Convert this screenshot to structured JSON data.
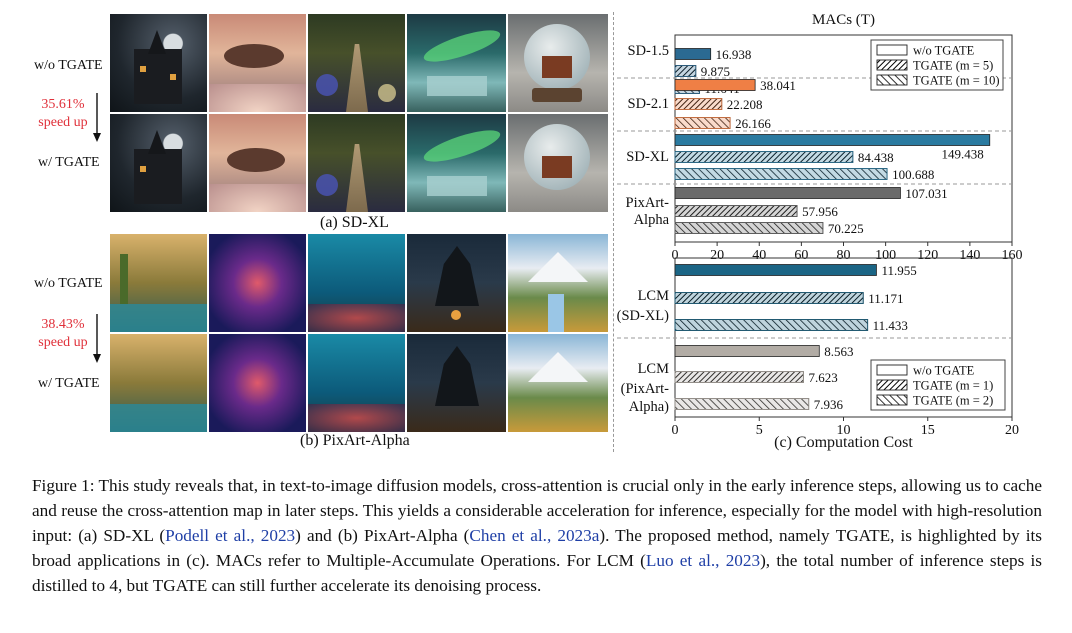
{
  "left": {
    "sdxl_label": "(a) SD-XL",
    "pixart_label": "(b) PixArt-Alpha",
    "row_wo": "w/o TGATE",
    "row_w": "w/ TGATE",
    "sdxl_speed": "35.61%",
    "pixart_speed": "38.43%",
    "speed_up": "speed up"
  },
  "right": {
    "top_title": "MACs (T)",
    "bottom_xlabel": "(c) Computation Cost"
  },
  "chart_data": [
    {
      "type": "bar",
      "orientation": "horizontal",
      "title": "MACs (T)",
      "xlim": [
        0,
        160
      ],
      "xticks": [
        0,
        20,
        40,
        60,
        80,
        100,
        120,
        140,
        160
      ],
      "groups": [
        "SD-1.5",
        "SD-2.1",
        "SD-XL",
        "PixArt-Alpha"
      ],
      "group_labels": [
        [
          "SD-1.5"
        ],
        [
          "SD-2.1"
        ],
        [
          "SD-XL"
        ],
        [
          "PixArt-",
          "Alpha"
        ]
      ],
      "legend": {
        "position": "top-right",
        "entries": [
          "w/o TGATE",
          "TGATE (m = 5)",
          "TGATE (m = 10)"
        ]
      },
      "series": [
        {
          "name": "w/o TGATE",
          "pattern": "solid",
          "values": [
            16.938,
            38.041,
            149.438,
            107.031
          ]
        },
        {
          "name": "TGATE (m = 5)",
          "pattern": "hatch-dense",
          "values": [
            9.875,
            22.208,
            84.438,
            57.956
          ]
        },
        {
          "name": "TGATE (m = 10)",
          "pattern": "hatch",
          "values": [
            11.641,
            26.166,
            100.688,
            70.225
          ]
        }
      ],
      "colors": [
        "#2b6a92",
        "#ef7f45",
        "#2a7aa0",
        "#6b6b6b"
      ],
      "grid": false
    },
    {
      "type": "bar",
      "orientation": "horizontal",
      "xlabel": "(c) Computation Cost",
      "xlim": [
        0,
        20
      ],
      "xticks": [
        0,
        5,
        10,
        15,
        20
      ],
      "groups": [
        "LCM (SD-XL)",
        "LCM (PixArt-Alpha)"
      ],
      "group_labels": [
        [
          "LCM",
          "(SD-XL)"
        ],
        [
          "LCM",
          "(PixArt-",
          "Alpha)"
        ]
      ],
      "legend": {
        "position": "bottom-right",
        "entries": [
          "w/o TGATE",
          "TGATE (m = 1)",
          "TGATE (m = 2)"
        ]
      },
      "series": [
        {
          "name": "w/o TGATE",
          "pattern": "solid",
          "values": [
            11.955,
            8.563
          ]
        },
        {
          "name": "TGATE (m = 1)",
          "pattern": "hatch-dense",
          "values": [
            11.171,
            7.623
          ]
        },
        {
          "name": "TGATE (m = 2)",
          "pattern": "hatch",
          "values": [
            11.433,
            7.936
          ]
        }
      ],
      "colors": [
        "#1b6585",
        "#b2aca5"
      ],
      "grid": false
    }
  ],
  "caption": {
    "p1": "Figure 1: This study reveals that, in text-to-image diffusion models, cross-attention is crucial only in the early inference steps, allowing us to cache and reuse the cross-attention map in later steps. This yields a considerable acceleration for inference, especially for the model with high-resolution input: (a) SD-XL (",
    "cite1": "Podell et al., 2023",
    "p2": ") and (b) PixArt-Alpha (",
    "cite2": "Chen et al., 2023a",
    "p3": "). The proposed method, namely ",
    "tgate": "TGATE",
    "p4": ", is highlighted by its broad applications in (c). MACs refer to Multiple-Accumulate Operations. For LCM (",
    "cite3": "Luo et al., 2023",
    "p5": "), the total number of inference steps is distilled to 4, but ",
    "p6": " can still further accelerate its denoising process."
  }
}
